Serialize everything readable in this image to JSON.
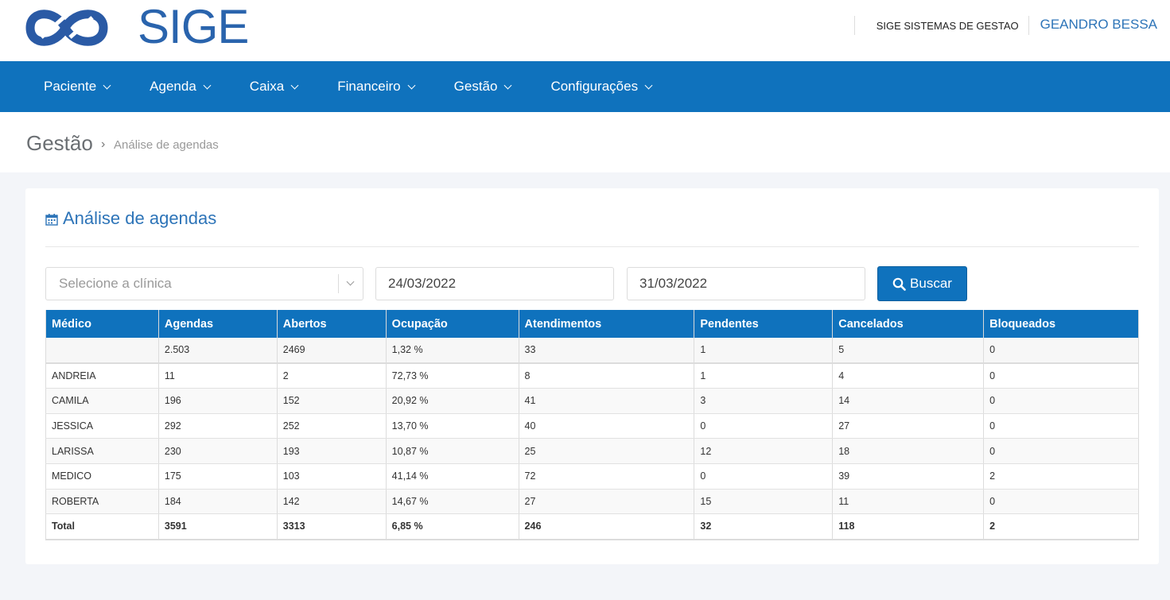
{
  "header": {
    "logo_text": "SIGE",
    "company": "SIGE SISTEMAS DE GESTAO",
    "user": "GEANDRO BESSA"
  },
  "nav": [
    {
      "label": "Paciente"
    },
    {
      "label": "Agenda"
    },
    {
      "label": "Caixa"
    },
    {
      "label": "Financeiro"
    },
    {
      "label": "Gestão"
    },
    {
      "label": "Configurações"
    }
  ],
  "breadcrumb": {
    "main": "Gestão",
    "separator": "›",
    "sub": "Análise de agendas"
  },
  "card": {
    "title": "Análise de agendas"
  },
  "filters": {
    "clinic_placeholder": "Selecione a clínica",
    "date_from": "24/03/2022",
    "date_to": "31/03/2022",
    "search_label": "Buscar"
  },
  "table": {
    "headers": [
      "Médico",
      "Agendas",
      "Abertos",
      "Ocupação",
      "Atendimentos",
      "Pendentes",
      "Cancelados",
      "Bloqueados"
    ],
    "summary": [
      "",
      "2.503",
      "2469",
      "1,32 %",
      "33",
      "1",
      "5",
      "0"
    ],
    "rows": [
      [
        "ANDREIA",
        "11",
        "2",
        "72,73 %",
        "8",
        "1",
        "4",
        "0"
      ],
      [
        "CAMILA",
        "196",
        "152",
        "20,92 %",
        "41",
        "3",
        "14",
        "0"
      ],
      [
        "JESSICA",
        "292",
        "252",
        "13,70 %",
        "40",
        "0",
        "27",
        "0"
      ],
      [
        "LARISSA",
        "230",
        "193",
        "10,87 %",
        "25",
        "12",
        "18",
        "0"
      ],
      [
        "MEDICO",
        "175",
        "103",
        "41,14 %",
        "72",
        "0",
        "39",
        "2"
      ],
      [
        "ROBERTA",
        "184",
        "142",
        "14,67 %",
        "27",
        "15",
        "11",
        "0"
      ]
    ],
    "total": [
      "Total",
      "3591",
      "3313",
      "6,85 %",
      "246",
      "32",
      "118",
      "2"
    ]
  },
  "colors": {
    "primary": "#0f72bd",
    "link": "#2d74b8",
    "background": "#f3f5f9"
  }
}
